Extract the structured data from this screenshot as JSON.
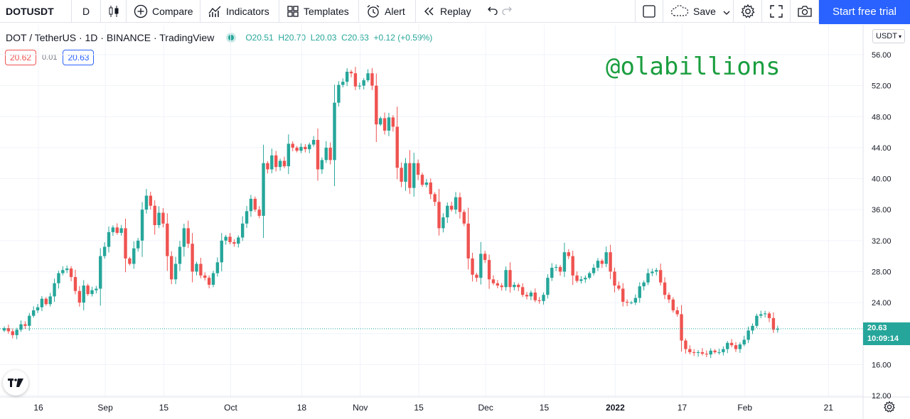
{
  "toolbar": {
    "symbol": "DOTUSDT",
    "interval": "D",
    "compare": "Compare",
    "indicators": "Indicators",
    "templates": "Templates",
    "alert": "Alert",
    "replay": "Replay",
    "save": "Save",
    "trial": "Start free trial"
  },
  "legend": {
    "title": "DOT / TetherUS · 1D · BINANCE · TradingView",
    "o_label": "O",
    "o": "20.51",
    "h_label": "H",
    "h": "20.70",
    "l_label": "L",
    "l": "20.03",
    "c_label": "C",
    "c": "20.63",
    "change": "+0.12 (+0.59%)"
  },
  "quote": {
    "sell": "20.62",
    "spread": "0.01",
    "buy": "20.63"
  },
  "currency": "USDT",
  "watermark": "@olabillions",
  "price_tag": {
    "price": "20.63",
    "countdown": "10:09:14"
  },
  "colors": {
    "up": "#26a69a",
    "down": "#ef5350",
    "accent": "#2962ff",
    "watermark": "#1a9e3f"
  },
  "chart_data": {
    "type": "candlestick",
    "ylim": [
      12,
      56
    ],
    "y_ticks": [
      12,
      16,
      20,
      24,
      28,
      32,
      36,
      40,
      44,
      48,
      52,
      56
    ],
    "y_tick_labels": [
      "12.00",
      "16.00",
      "20.00",
      "24.00",
      "28.00",
      "32.00",
      "36.00",
      "40.00",
      "44.00",
      "48.00",
      "52.00",
      "56.00"
    ],
    "x_ticks": [
      {
        "label": "16",
        "day": 0
      },
      {
        "label": "Sep",
        "day": 16
      },
      {
        "label": "15",
        "day": 30
      },
      {
        "label": "Oct",
        "day": 46
      },
      {
        "label": "18",
        "day": 63
      },
      {
        "label": "Nov",
        "day": 77
      },
      {
        "label": "15",
        "day": 91
      },
      {
        "label": "Dec",
        "day": 107
      },
      {
        "label": "15",
        "day": 121
      },
      {
        "label": "2022",
        "day": 138
      },
      {
        "label": "17",
        "day": 154
      },
      {
        "label": "Feb",
        "day": 169
      },
      {
        "label": "21",
        "day": 189
      }
    ],
    "last_price": 20.63,
    "closes": [
      20.7,
      20.3,
      19.8,
      20.5,
      21.2,
      21.0,
      22.3,
      23.0,
      23.4,
      24.5,
      23.8,
      24.8,
      26.5,
      27.8,
      28.2,
      28.4,
      27.3,
      25.5,
      24.0,
      26.2,
      25.1,
      25.6,
      25.8,
      30.0,
      31.2,
      33.1,
      33.7,
      33.0,
      33.6,
      29.7,
      29.0,
      31.0,
      32.0,
      36.0,
      37.8,
      36.5,
      34.0,
      35.6,
      34.2,
      30.0,
      27.0,
      29.0,
      31.2,
      33.6,
      31.6,
      28.0,
      29.0,
      27.5,
      27.2,
      26.3,
      27.8,
      29.2,
      32.0,
      32.5,
      31.8,
      31.6,
      32.4,
      34.2,
      35.8,
      37.4,
      36.0,
      35.2,
      42.0,
      41.2,
      43.0,
      41.5,
      42.3,
      41.6,
      44.5,
      44.0,
      43.6,
      44.1,
      43.8,
      44.4,
      45.0,
      41.2,
      42.4,
      44.0,
      42.4,
      49.8,
      52.1,
      52.5,
      53.8,
      53.6,
      51.9,
      52.0,
      52.7,
      53.6,
      52.0,
      47.0,
      47.8,
      46.2,
      47.9,
      46.7,
      41.4,
      39.6,
      42.0,
      38.8,
      42.0,
      40.5,
      39.2,
      39.5,
      38.0,
      37.0,
      33.6,
      35.0,
      36.5,
      36.0,
      37.6,
      35.7,
      34.2,
      29.7,
      27.6,
      27.2,
      30.3,
      29.5,
      27.0,
      26.5,
      26.2,
      26.0,
      28.2,
      26.0,
      26.3,
      26.0,
      25.0,
      24.8,
      25.3,
      24.3,
      24.2,
      25.0,
      27.2,
      28.5,
      28.6,
      28.0,
      30.5,
      30.0,
      27.5,
      26.8,
      27.0,
      27.2,
      27.8,
      28.5,
      29.4,
      29.0,
      30.5,
      28.0,
      26.2,
      25.8,
      24.1,
      24.0,
      24.0,
      24.6,
      26.1,
      26.6,
      27.8,
      28.0,
      28.2,
      26.6,
      25.0,
      24.4,
      23.0,
      22.5,
      19.1,
      18.0,
      17.6,
      17.5,
      17.6,
      17.4,
      17.3,
      17.8,
      17.6,
      17.6,
      18.0,
      18.8,
      18.5,
      18.0,
      18.6,
      19.2,
      20.4,
      21.0,
      22.3,
      22.5,
      22.6,
      22.0,
      20.5,
      20.63
    ]
  }
}
